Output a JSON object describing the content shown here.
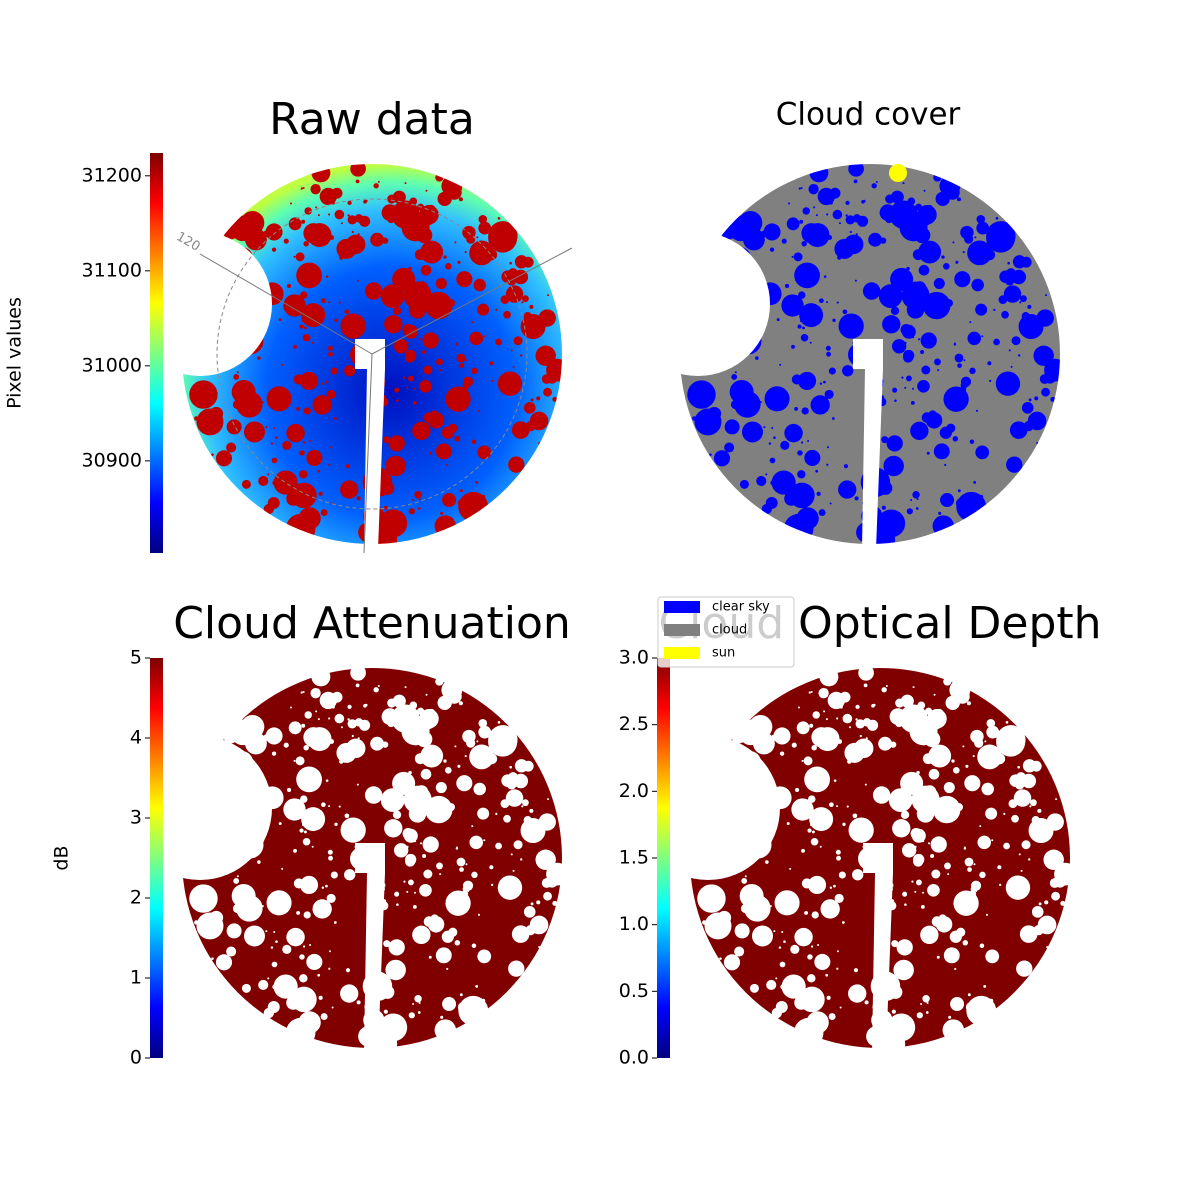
{
  "chart_data": [
    {
      "type": "image",
      "title": "Raw data",
      "colorbar_label": "Pixel values",
      "colormap": "jet",
      "ylim": [
        30803,
        31224
      ],
      "yticks": [
        30900,
        31000,
        31100,
        31200
      ],
      "annotations": [
        "120"
      ]
    },
    {
      "type": "image",
      "title": "Cloud cover",
      "background_color": "#808080",
      "legend": [
        {
          "name": "clear sky",
          "color": "#0000ff"
        },
        {
          "name": "cloud",
          "color": "#808080"
        },
        {
          "name": "sun",
          "color": "#ffff00"
        }
      ],
      "legend_loc": "lower left"
    },
    {
      "type": "image",
      "title": "Cloud Attenuation",
      "colorbar_label": "dB",
      "colormap": "jet",
      "fill_color": "#800000",
      "ylim": [
        0,
        5
      ],
      "yticks": [
        0,
        1,
        2,
        3,
        4,
        5
      ]
    },
    {
      "type": "image",
      "title": "Cloud Optical Depth",
      "colormap": "jet",
      "fill_color": "#800000",
      "ylim": [
        0,
        3
      ],
      "yticks": [
        {
          "value": 0,
          "label": "0.0"
        },
        0.5,
        {
          "value": 1,
          "label": "1.0"
        },
        1.5,
        {
          "value": 2,
          "label": "2.0"
        },
        2.5,
        {
          "value": 3,
          "label": "3.0"
        }
      ]
    }
  ]
}
